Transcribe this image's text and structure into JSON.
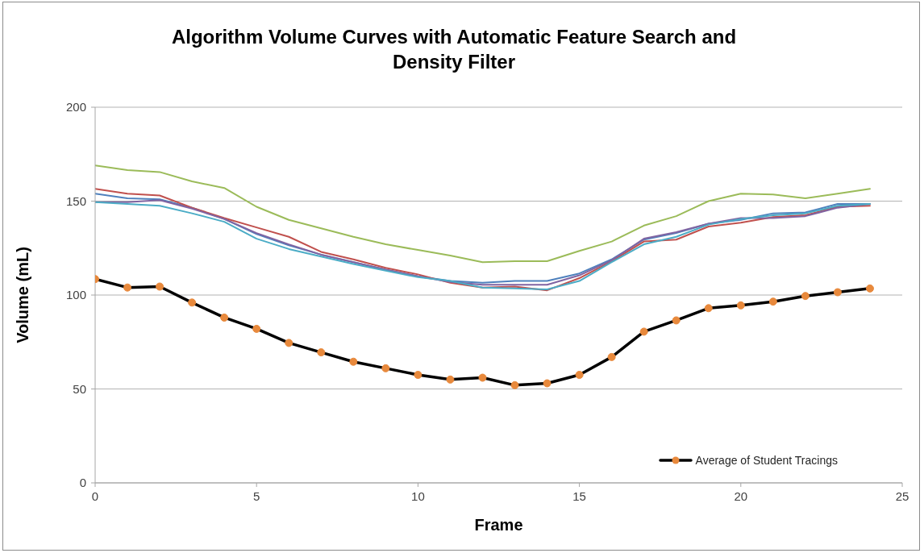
{
  "chart_data": {
    "type": "line",
    "title": "Algorithm Volume Curves with Automatic Feature Search and Density Filter",
    "xlabel": "Frame",
    "ylabel": "Volume (mL)",
    "x": [
      0,
      1,
      2,
      3,
      4,
      5,
      6,
      7,
      8,
      9,
      10,
      11,
      12,
      13,
      14,
      15,
      16,
      17,
      18,
      19,
      20,
      21,
      22,
      23,
      24
    ],
    "series": [
      {
        "color": "#4f81bd",
        "marker": "none",
        "values": [
          154,
          151.5,
          151,
          146.5,
          140.5,
          132.5,
          126.5,
          121.5,
          117.5,
          113.5,
          110,
          107.5,
          106.5,
          107.5,
          107.5,
          111.5,
          119,
          129.5,
          133,
          138,
          140,
          143.5,
          144,
          148.5,
          148.5
        ]
      },
      {
        "color": "#c0504d",
        "marker": "none",
        "values": [
          156.5,
          154,
          153,
          146.5,
          141,
          136,
          131,
          123,
          119,
          114.5,
          111,
          106.5,
          104,
          104.5,
          102.5,
          109,
          118,
          128.5,
          129.5,
          136.5,
          138.5,
          141.5,
          142.5,
          147,
          147.5
        ]
      },
      {
        "color": "#9bbb59",
        "marker": "none",
        "values": [
          169,
          166.5,
          165.5,
          160.5,
          157,
          147,
          140,
          135.5,
          131,
          127,
          124,
          121,
          117.5,
          118,
          118,
          123.5,
          128.5,
          137,
          142,
          150,
          154,
          153.5,
          151.5,
          154,
          156.5
        ]
      },
      {
        "color": "#8064a2",
        "marker": "none",
        "values": [
          149.5,
          149.5,
          150.5,
          146,
          140.5,
          133,
          127,
          121.5,
          117.5,
          113.5,
          110,
          107,
          105.5,
          105.5,
          105.5,
          110.5,
          118.5,
          130,
          133.5,
          138,
          141,
          141,
          142,
          146.5,
          148.5
        ]
      },
      {
        "color": "#4bacc6",
        "marker": "none",
        "values": [
          149.5,
          148.5,
          147.5,
          143.5,
          139,
          130,
          124.5,
          120.5,
          116.5,
          113,
          109.5,
          107.5,
          104,
          103.5,
          103,
          107.5,
          117.5,
          127,
          131,
          137.5,
          140.5,
          142.5,
          143.5,
          147.5,
          148.5
        ]
      },
      {
        "name": "Average of Student Tracings",
        "color": "#000000",
        "marker": "circle",
        "colors": [
          "#e8893c",
          "#e8893c",
          "#e8893c",
          "#e8893c",
          "#e8893c",
          "#e8893c",
          "#e8893c",
          "#e8893c",
          "#e8893c",
          "#e8893c",
          "#e8893c",
          "#e8893c",
          "#e8893c",
          "#e8893c",
          "#e8893c",
          "#e8893c",
          "#e8893c",
          "#e8893c",
          "#e8893c",
          "#e8893c",
          "#e8893c",
          "#e8893c",
          "#e8893c",
          "#e8893c",
          "#e8893c"
        ],
        "values": [
          108.5,
          104,
          104.5,
          96,
          88,
          82,
          74.5,
          69.5,
          64.5,
          61,
          57.5,
          55,
          56,
          52,
          53,
          57.5,
          67,
          80.5,
          86.5,
          93,
          94.5,
          96.5,
          99.5,
          101.5,
          103.5
        ]
      }
    ],
    "xlim": [
      0,
      25
    ],
    "xticks": [
      0,
      5,
      10,
      15,
      20,
      25
    ],
    "ylim": [
      0,
      200
    ],
    "yticks": [
      0,
      50,
      100,
      150,
      200
    ],
    "grid": "y",
    "legend": "bottom right",
    "line_style": "solid"
  }
}
